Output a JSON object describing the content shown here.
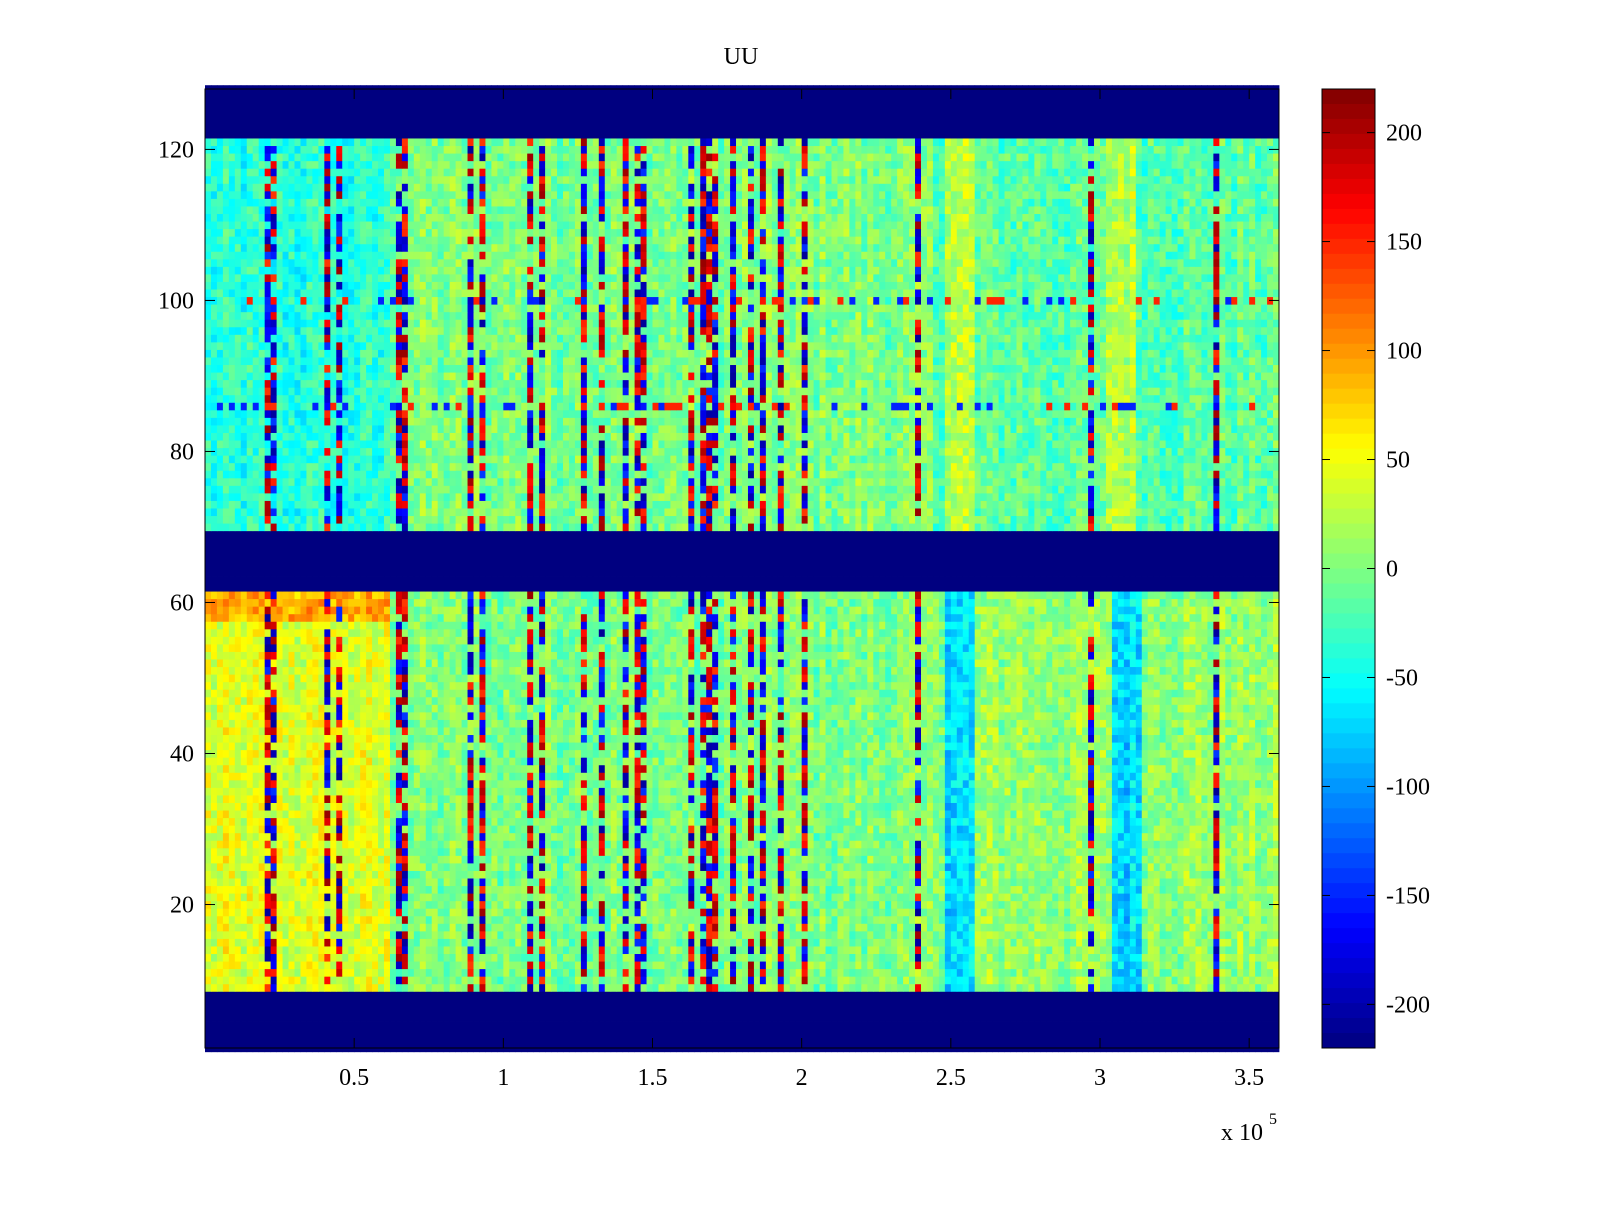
{
  "chart_data": {
    "type": "heatmap",
    "title": "UU",
    "xlabel": "",
    "ylabel": "",
    "x_multiplier_label": "x 10",
    "x_multiplier_exponent": "5",
    "x_range": [
      0,
      360000
    ],
    "y_range": [
      1,
      128
    ],
    "x_ticks": [
      {
        "value": 50000,
        "label": "0.5"
      },
      {
        "value": 100000,
        "label": "1"
      },
      {
        "value": 150000,
        "label": "1.5"
      },
      {
        "value": 200000,
        "label": "2"
      },
      {
        "value": 250000,
        "label": "2.5"
      },
      {
        "value": 300000,
        "label": "3"
      },
      {
        "value": 350000,
        "label": "3.5"
      }
    ],
    "y_ticks": [
      {
        "value": 20,
        "label": "20"
      },
      {
        "value": 40,
        "label": "40"
      },
      {
        "value": 60,
        "label": "60"
      },
      {
        "value": 80,
        "label": "80"
      },
      {
        "value": 100,
        "label": "100"
      },
      {
        "value": 120,
        "label": "120"
      }
    ],
    "colorbar": {
      "colormap": "jet",
      "range": [
        -220,
        220
      ],
      "ticks": [
        {
          "value": 200,
          "label": "200"
        },
        {
          "value": 150,
          "label": "150"
        },
        {
          "value": 100,
          "label": "100"
        },
        {
          "value": 50,
          "label": "50"
        },
        {
          "value": 0,
          "label": "0"
        },
        {
          "value": -50,
          "label": "-50"
        },
        {
          "value": -100,
          "label": "-100"
        },
        {
          "value": -150,
          "label": "-150"
        },
        {
          "value": -200,
          "label": "-200"
        }
      ]
    },
    "masked_value": -220,
    "masked_rows": [
      [
        1,
        8
      ],
      [
        62,
        69
      ],
      [
        122,
        128
      ]
    ],
    "regions": [
      {
        "x": [
          0,
          62000
        ],
        "y": [
          69,
          122
        ],
        "base": -40
      },
      {
        "x": [
          0,
          62000
        ],
        "y": [
          8,
          62
        ],
        "base": 40
      },
      {
        "x": [
          0,
          62000
        ],
        "y": [
          58,
          62
        ],
        "base": 90
      },
      {
        "x": [
          62000,
          245000
        ],
        "y": [
          8,
          122
        ],
        "base": 0
      },
      {
        "x": [
          245000,
          360000
        ],
        "y": [
          69,
          122
        ],
        "base": -15
      },
      {
        "x": [
          245000,
          360000
        ],
        "y": [
          8,
          62
        ],
        "base": 10
      },
      {
        "x": [
          248000,
          258000
        ],
        "y": [
          69,
          122
        ],
        "base": 25
      },
      {
        "x": [
          302000,
          313000
        ],
        "y": [
          69,
          122
        ],
        "base": 25
      },
      {
        "x": [
          248000,
          258000
        ],
        "y": [
          8,
          62
        ],
        "base": -70
      },
      {
        "x": [
          305000,
          315000
        ],
        "y": [
          8,
          62
        ],
        "base": -70
      }
    ],
    "spike_columns_x": [
      20000,
      23000,
      41000,
      44000,
      64000,
      67000,
      88000,
      92000,
      108000,
      112000,
      126000,
      132000,
      140000,
      144000,
      147000,
      163000,
      166000,
      168000,
      170000,
      176000,
      182000,
      186000,
      192000,
      200000,
      238000,
      296000,
      339000
    ]
  }
}
